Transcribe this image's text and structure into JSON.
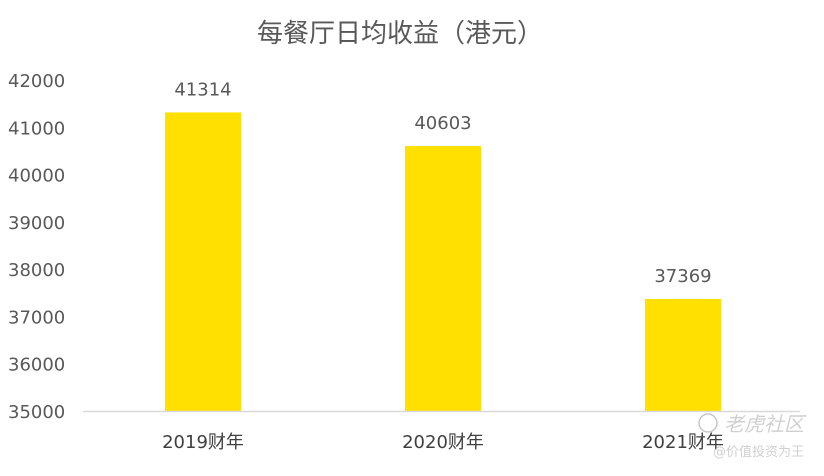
{
  "chart_data": {
    "type": "bar",
    "title": "每餐厅日均收益（港元）",
    "categories": [
      "2019财年",
      "2020财年",
      "2021财年"
    ],
    "values": [
      41314,
      40603,
      37369
    ],
    "data_labels": [
      "41314",
      "40603",
      "37369"
    ],
    "ylim": [
      35000,
      42000
    ],
    "yticks": [
      "35000",
      "36000",
      "37000",
      "38000",
      "39000",
      "40000",
      "41000",
      "42000"
    ],
    "grid": false,
    "legend": "none",
    "bar_color": "#FFE000",
    "text_color": "#595959"
  },
  "watermark": {
    "brand": "老虎社区",
    "handle": "@价值投资为王"
  }
}
